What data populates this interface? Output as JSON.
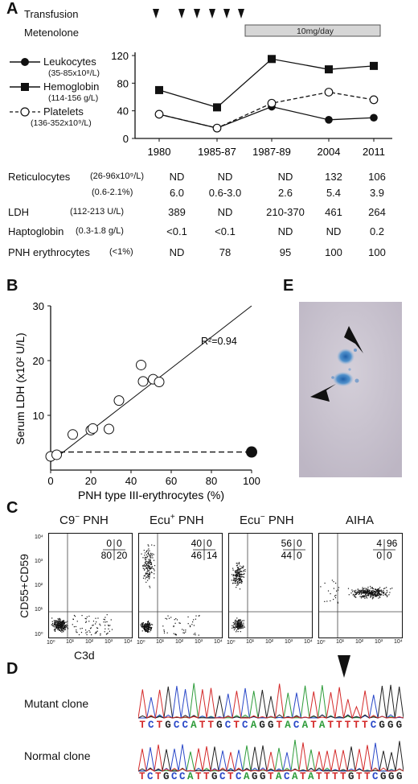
{
  "panelA": {
    "letter": "A",
    "transfusion_label": "Transfusion",
    "metenolone_label": "Metenolone",
    "metenolone_dose": "10mg/day",
    "legend": [
      {
        "name": "Leukocytes",
        "range": "(35-85x10⁸/L)",
        "marker": "filled-circle"
      },
      {
        "name": "Hemoglobin",
        "range": "(114-156 g/L)",
        "marker": "filled-square"
      },
      {
        "name": "Platelets",
        "range": "(136-352x10⁹/L)",
        "marker": "open-circle"
      }
    ]
  },
  "chart_data": [
    {
      "type": "line",
      "x": [
        "1980",
        "1985-87",
        "1987-89",
        "2004",
        "2011"
      ],
      "yticks": [
        "0",
        "40",
        "80",
        "120"
      ],
      "ylim": [
        0,
        120
      ],
      "series": [
        {
          "name": "Leukocytes",
          "values": [
            35,
            15,
            46,
            27,
            30
          ]
        },
        {
          "name": "Hemoglobin",
          "values": [
            70,
            45,
            115,
            100,
            105
          ]
        },
        {
          "name": "Platelets",
          "values": [
            35,
            15,
            51,
            67,
            56
          ]
        }
      ]
    },
    {
      "type": "scatter",
      "xlabel": "PNH type III-erythrocytes (%)",
      "ylabel": "Serum LDH  (x10² U/L)",
      "xticks": [
        "0",
        "20",
        "40",
        "60",
        "80",
        "100"
      ],
      "yticks": [
        "10",
        "20",
        "30"
      ],
      "xlim": [
        0,
        100
      ],
      "ylim": [
        0,
        30
      ],
      "annotation": "R²=0.94",
      "open_points": [
        [
          0,
          2.5
        ],
        [
          3,
          2.8
        ],
        [
          11,
          6.5
        ],
        [
          20,
          7.3
        ],
        [
          21,
          7.6
        ],
        [
          29,
          7.5
        ],
        [
          34,
          12.7
        ],
        [
          45,
          19.2
        ],
        [
          46,
          16.2
        ],
        [
          51,
          16.6
        ],
        [
          54,
          16.1
        ]
      ],
      "filled_points": [
        [
          100,
          3.3
        ]
      ],
      "fit_line": [
        [
          0,
          1.5
        ],
        [
          100,
          30
        ]
      ],
      "dashed_line": [
        [
          0,
          3.3
        ],
        [
          100,
          3.3
        ]
      ]
    }
  ],
  "table": {
    "rows": [
      {
        "label": "Reticulocytes",
        "range": "(26-96x10⁹/L)",
        "values": [
          "ND",
          "ND",
          "ND",
          "132",
          "106"
        ]
      },
      {
        "label": "",
        "range": "(0.6-2.1%)",
        "values": [
          "6.0",
          "0.6-3.0",
          "2.6",
          "5.4",
          "3.9"
        ]
      },
      {
        "label": "LDH",
        "range": "(112-213 U/L)",
        "values": [
          "389",
          "ND",
          "210-370",
          "461",
          "264"
        ]
      },
      {
        "label": "Haptoglobin",
        "range": "(0.3-1.8 g/L)",
        "values": [
          "<0.1",
          "<0.1",
          "ND",
          "ND",
          "0.2"
        ]
      },
      {
        "label": "PNH erythrocytes",
        "range": "(<1%)",
        "values": [
          "ND",
          "78",
          "95",
          "100",
          "100"
        ]
      }
    ]
  },
  "panelB": {
    "letter": "B"
  },
  "panelC": {
    "letter": "C",
    "ylabel": "CD55+CD59",
    "xlabel": "C3d",
    "plots": [
      {
        "title_main": "C9",
        "title_sup": "−",
        "title_rest": " PNH",
        "q_tl": "0",
        "q_tr": "0",
        "q_bl": "80",
        "q_br": "20"
      },
      {
        "title_main": "Ecu",
        "title_sup": "+",
        "title_rest": " PNH",
        "q_tl": "40",
        "q_tr": "0",
        "q_bl": "46",
        "q_br": "14"
      },
      {
        "title_main": "Ecu",
        "title_sup": "−",
        "title_rest": " PNH",
        "q_tl": "56",
        "q_tr": "0",
        "q_bl": "44",
        "q_br": "0"
      },
      {
        "title_main": "AIHA",
        "title_sup": "",
        "title_rest": "",
        "q_tl": "4",
        "q_tr": "96",
        "q_bl": "0",
        "q_br": "0"
      }
    ],
    "axis_ticks": [
      "10⁰",
      "10¹",
      "10²",
      "10³",
      "10⁴"
    ]
  },
  "panelD": {
    "letter": "D",
    "mutant_label": "Mutant clone",
    "normal_label": "Normal clone",
    "mutant_seq": "TCTGCCATTGCTCAGGTACATATTTTTCGGG",
    "normal_seq": "TCTGCCATTGCTCAGGTACATATTTTGTTCGGG"
  },
  "panelE": {
    "letter": "E"
  },
  "colors": {
    "seq_A": "#2e9c3a",
    "seq_C": "#2a48c8",
    "seq_G": "#222222",
    "seq_T": "#d42a2a",
    "bar_fill": "#d6d6d6",
    "stain_blue": "#2f79c2",
    "slide_bg": "#c9c3d0"
  }
}
